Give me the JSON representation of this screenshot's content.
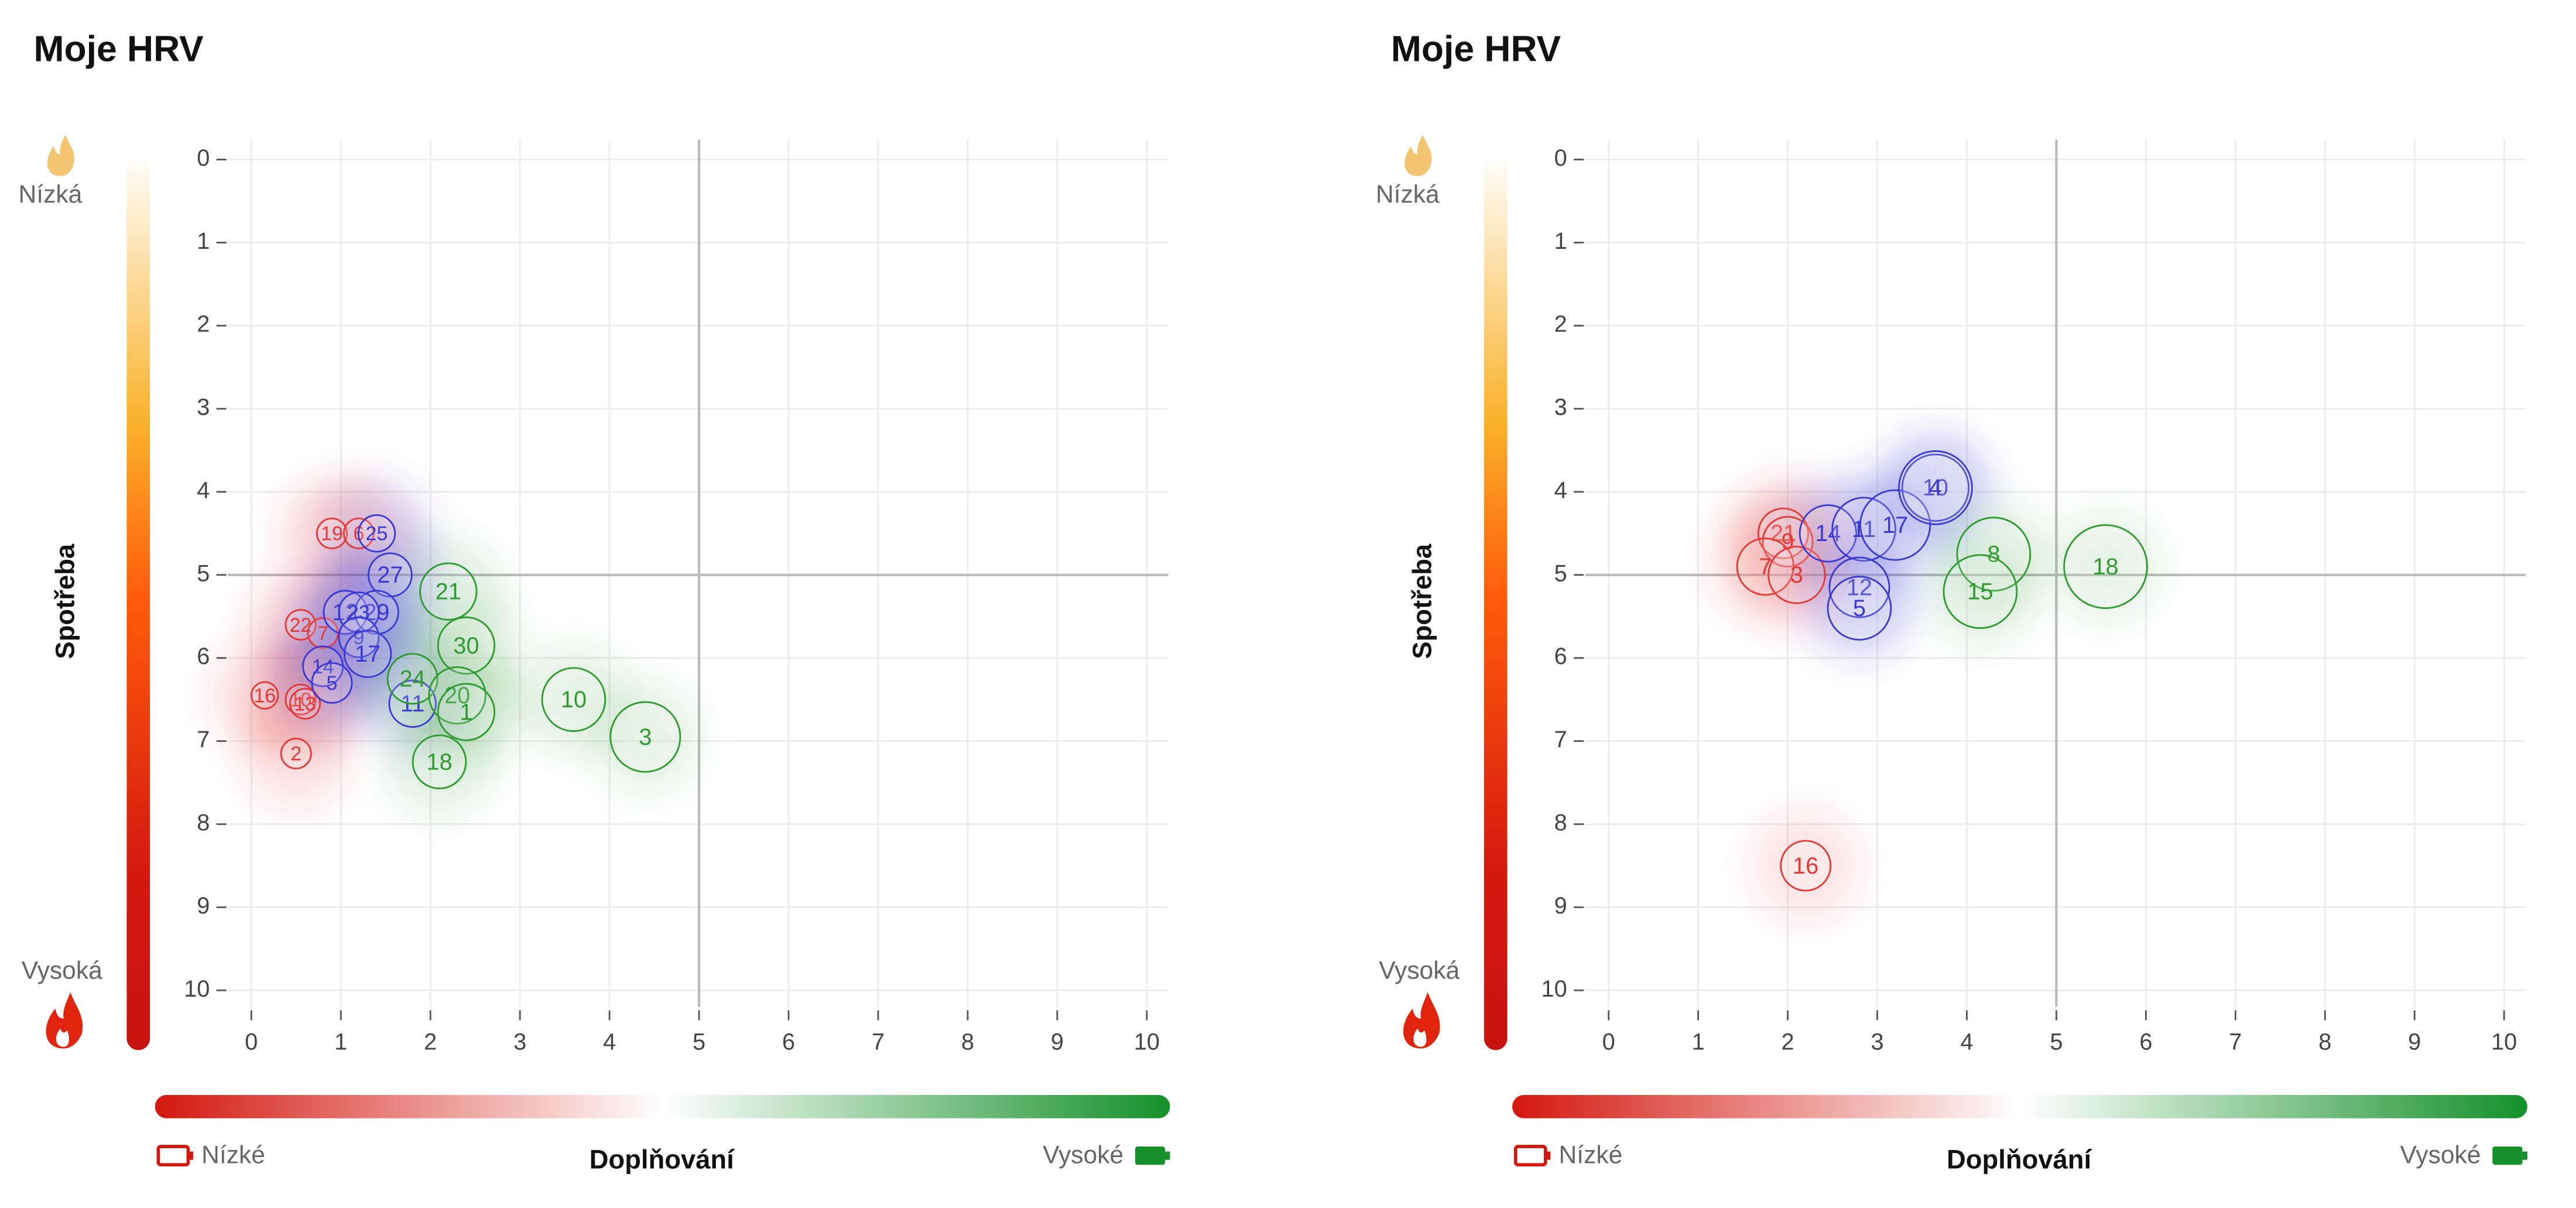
{
  "chart_data": [
    {
      "type": "scatter",
      "title": "Moje HRV",
      "y_label": "Spotřeba",
      "y_low_label": "Nízká",
      "y_high_label": "Vysoká",
      "x_label": "Doplňování",
      "x_low_label": "Nízké",
      "x_high_label": "Vysoké",
      "xlim": [
        0,
        10
      ],
      "ylim": [
        0,
        10
      ],
      "y_inverted": true,
      "grid": true,
      "ref_x": 5,
      "ref_y": 5,
      "xticks": [
        0,
        1,
        2,
        3,
        4,
        5,
        6,
        7,
        8,
        9,
        10
      ],
      "yticks": [
        0,
        1,
        2,
        3,
        4,
        5,
        6,
        7,
        8,
        9,
        10
      ],
      "series": [
        {
          "color": "#e53935",
          "labels": [
            "19",
            "6",
            "22",
            "7",
            "16",
            "10",
            "13",
            "2"
          ],
          "x": [
            0.9,
            1.2,
            0.55,
            0.8,
            0.15,
            0.55,
            0.6,
            0.5
          ],
          "values": [
            4.5,
            4.5,
            5.6,
            5.7,
            6.45,
            6.5,
            6.55,
            7.15
          ],
          "sizes": [
            9,
            9,
            9,
            9,
            8,
            9,
            9,
            9
          ]
        },
        {
          "color": "#3a3ad6",
          "labels": [
            "25",
            "27",
            "12",
            "29",
            "23",
            "9",
            "17",
            "14",
            "5",
            "11"
          ],
          "x": [
            1.4,
            1.55,
            1.05,
            1.4,
            1.2,
            1.2,
            1.3,
            0.8,
            0.9,
            1.8
          ],
          "values": [
            4.5,
            5.0,
            5.45,
            5.45,
            5.45,
            5.75,
            5.95,
            6.1,
            6.3,
            6.55
          ],
          "sizes": [
            11,
            13,
            13,
            13,
            12,
            12,
            14,
            12,
            12,
            14
          ]
        },
        {
          "color": "#2e9b2e",
          "labels": [
            "21",
            "30",
            "24",
            "20",
            "1",
            "18",
            "10",
            "3"
          ],
          "x": [
            2.2,
            2.4,
            1.8,
            2.3,
            2.4,
            2.1,
            3.6,
            4.4
          ],
          "values": [
            5.2,
            5.85,
            6.25,
            6.45,
            6.65,
            7.25,
            6.5,
            6.95
          ],
          "sizes": [
            17,
            17,
            15,
            17,
            17,
            16,
            19,
            21
          ]
        }
      ]
    },
    {
      "type": "scatter",
      "title": "Moje HRV",
      "y_label": "Spotřeba",
      "y_low_label": "Nízká",
      "y_high_label": "Vysoká",
      "x_label": "Doplňování",
      "x_low_label": "Nízké",
      "x_high_label": "Vysoké",
      "xlim": [
        0,
        10
      ],
      "ylim": [
        0,
        10
      ],
      "y_inverted": true,
      "grid": true,
      "ref_x": 5,
      "ref_y": 5,
      "xticks": [
        0,
        1,
        2,
        3,
        4,
        5,
        6,
        7,
        8,
        9,
        10
      ],
      "yticks": [
        0,
        1,
        2,
        3,
        4,
        5,
        6,
        7,
        8,
        9,
        10
      ],
      "series": [
        {
          "color": "#e53935",
          "labels": [
            "21",
            "9",
            "7",
            "3",
            "16"
          ],
          "x": [
            1.95,
            2.0,
            1.75,
            2.1,
            2.2
          ],
          "values": [
            4.5,
            4.6,
            4.9,
            5.0,
            8.5
          ],
          "sizes": [
            15,
            15,
            17,
            17,
            15
          ]
        },
        {
          "color": "#3a3ad6",
          "labels": [
            "14",
            "11",
            "17",
            "10",
            "4",
            "12",
            "5"
          ],
          "x": [
            2.45,
            2.85,
            3.2,
            3.65,
            3.65,
            2.8,
            2.8
          ],
          "values": [
            4.5,
            4.45,
            4.4,
            3.95,
            3.95,
            5.15,
            5.4
          ],
          "sizes": [
            17,
            19,
            21,
            20,
            22,
            18,
            19
          ]
        },
        {
          "color": "#2e9b2e",
          "labels": [
            "8",
            "15",
            "18"
          ],
          "x": [
            4.3,
            4.15,
            5.55
          ],
          "values": [
            4.75,
            5.2,
            4.9
          ],
          "sizes": [
            22,
            22,
            25
          ]
        }
      ]
    }
  ]
}
